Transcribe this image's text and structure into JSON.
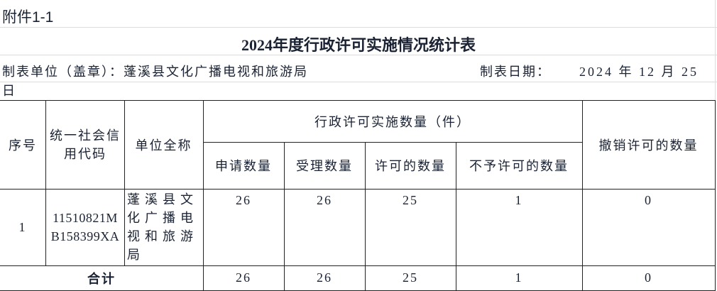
{
  "attachment": "附件1-1",
  "title": "2024年度行政许可实施情况统计表",
  "unit_label": "制表单位（盖章）：蓬溪县文化广播电视和旅游局",
  "date_label": "制表日期：",
  "date_value": "2024 年 12 月 25",
  "date_wrap": "日",
  "headers": {
    "seq": "序号",
    "code": "统一社会信用代码",
    "name": "单位全称",
    "group": "行政许可实施数量（件）",
    "apply": "申请数量",
    "accept": "受理数量",
    "permit": "许可的数量",
    "deny": "不予许可的数量",
    "revoke": "撤销许可的数量"
  },
  "rows": [
    {
      "seq": "1",
      "code": "11510821MB158399XA",
      "name": "蓬溪县文化广播电视和旅游局",
      "apply": "26",
      "accept": "26",
      "permit": "25",
      "deny": "1",
      "revoke": "0"
    }
  ],
  "total": {
    "label": "合计",
    "apply": "26",
    "accept": "26",
    "permit": "25",
    "deny": "1",
    "revoke": "0"
  }
}
